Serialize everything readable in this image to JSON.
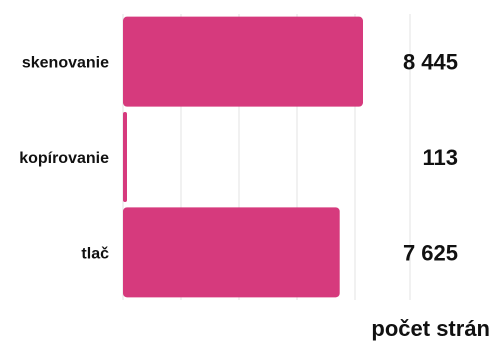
{
  "chart_data": {
    "type": "bar",
    "orientation": "horizontal",
    "categories": [
      "skenovanie",
      "kopírovanie",
      "tlač"
    ],
    "values": [
      8445,
      113,
      7625
    ],
    "value_labels": [
      "8 445",
      "113",
      "7 625"
    ],
    "xlabel": "počet strán",
    "xlim": [
      0,
      8445
    ],
    "grid": true,
    "legend": "none",
    "bar_color": "#d63a7d"
  }
}
